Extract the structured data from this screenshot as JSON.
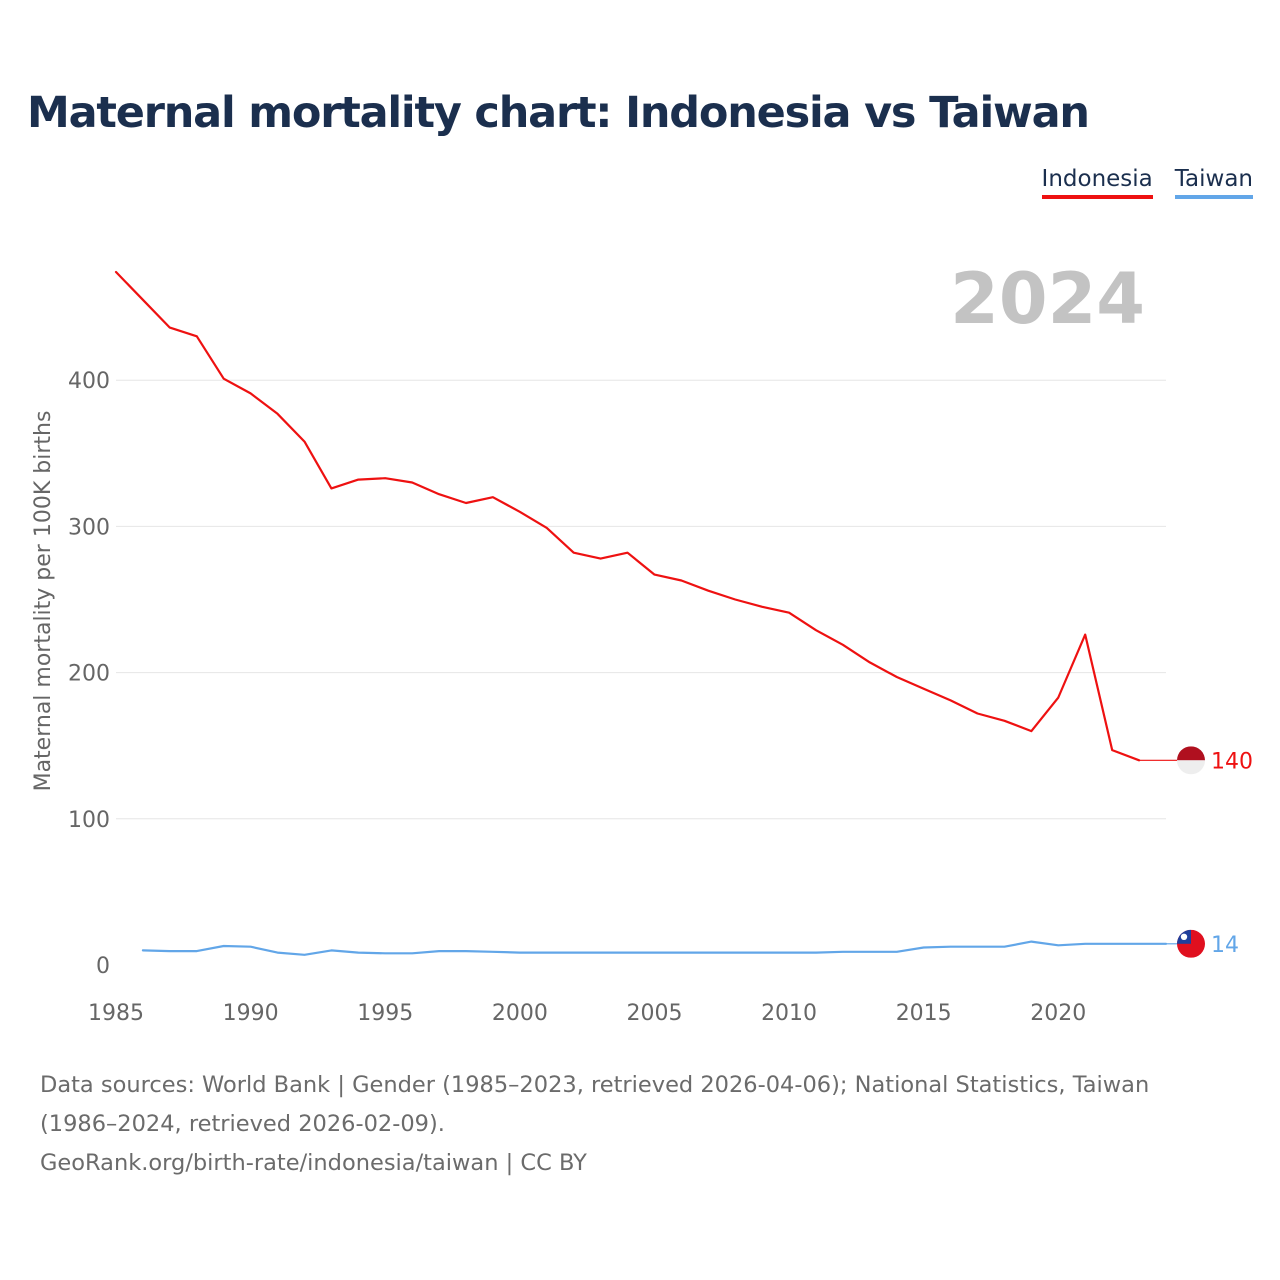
{
  "title": "Maternal mortality chart: Indonesia vs Taiwan",
  "year_overlay": "2024",
  "footer": {
    "line1": "Data sources: World Bank | Gender (1985–2023, retrieved 2026-04-06); National Statistics, Taiwan",
    "line2": "(1986–2024, retrieved 2026-02-09).",
    "line3": "GeoRank.org/birth-rate/indonesia/taiwan | CC BY"
  },
  "colors": {
    "indonesia": "#ee1111",
    "taiwan": "#62a6e8",
    "grid": "#e6e6e6",
    "axis_text": "#666666",
    "overlay": "#c3c3c3"
  },
  "chart_data": {
    "type": "line",
    "title": "Maternal mortality chart: Indonesia vs Taiwan",
    "xlabel": "",
    "ylabel": "Maternal mortality per 100K births",
    "xlim": [
      1985,
      2024
    ],
    "ylim": [
      0,
      480
    ],
    "xticks": [
      1985,
      1990,
      1995,
      2000,
      2005,
      2010,
      2015,
      2020
    ],
    "yticks": [
      0,
      100,
      200,
      300,
      400
    ],
    "grid": true,
    "legend": "top-right",
    "series": [
      {
        "name": "Indonesia",
        "color": "#ee1111",
        "end_label": "140",
        "x": [
          1985,
          1986,
          1987,
          1988,
          1989,
          1990,
          1991,
          1992,
          1993,
          1994,
          1995,
          1996,
          1997,
          1998,
          1999,
          2000,
          2001,
          2002,
          2003,
          2004,
          2005,
          2006,
          2007,
          2008,
          2009,
          2010,
          2011,
          2012,
          2013,
          2014,
          2015,
          2016,
          2017,
          2018,
          2019,
          2020,
          2021,
          2022,
          2023
        ],
        "values": [
          474,
          455,
          436,
          430,
          401,
          391,
          377,
          358,
          326,
          332,
          333,
          330,
          322,
          316,
          320,
          310,
          299,
          282,
          278,
          282,
          267,
          263,
          256,
          250,
          245,
          241,
          229,
          219,
          207,
          197,
          189,
          181,
          172,
          167,
          160,
          183,
          226,
          147,
          140
        ]
      },
      {
        "name": "Taiwan",
        "color": "#62a6e8",
        "end_label": "14",
        "x": [
          1986,
          1987,
          1988,
          1989,
          1990,
          1991,
          1992,
          1993,
          1994,
          1995,
          1996,
          1997,
          1998,
          1999,
          2000,
          2001,
          2002,
          2003,
          2004,
          2005,
          2006,
          2007,
          2008,
          2009,
          2010,
          2011,
          2012,
          2013,
          2014,
          2015,
          2016,
          2017,
          2018,
          2019,
          2020,
          2021,
          2022,
          2023,
          2024
        ],
        "values": [
          10,
          9.5,
          9.5,
          13,
          12.5,
          8.5,
          7,
          10,
          8.5,
          8,
          8,
          9.5,
          9.5,
          9,
          8.5,
          8.5,
          8.5,
          8.5,
          8.5,
          8.5,
          8.5,
          8.5,
          8.5,
          8.5,
          8.5,
          8.5,
          9,
          9,
          9,
          12,
          12.5,
          12.5,
          12.5,
          16,
          13.5,
          14.5,
          14.5,
          14.5,
          14.5
        ]
      }
    ]
  }
}
